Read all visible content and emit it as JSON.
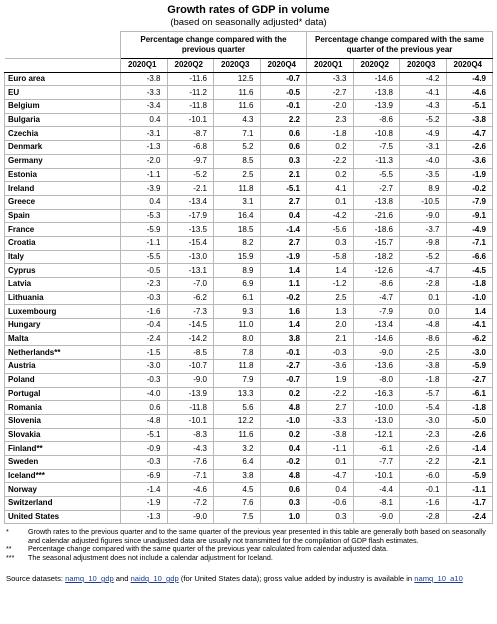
{
  "header": {
    "title": "Growth rates of GDP in volume",
    "subtitle": "(based on seasonally adjusted* data)"
  },
  "table": {
    "groups": [
      "Percentage change compared with the previous quarter",
      "Percentage change compared with the same quarter of the previous year"
    ],
    "quarters": [
      "2020Q1",
      "2020Q2",
      "2020Q3",
      "2020Q4"
    ],
    "rows": [
      [
        "Euro area",
        "-3.8",
        "-11.6",
        "12.5",
        "-0.7",
        "-3.3",
        "-14.6",
        "-4.2",
        "-4.9"
      ],
      [
        "EU",
        "-3.3",
        "-11.2",
        "11.6",
        "-0.5",
        "-2.7",
        "-13.8",
        "-4.1",
        "-4.6"
      ],
      [
        "Belgium",
        "-3.4",
        "-11.8",
        "11.6",
        "-0.1",
        "-2.0",
        "-13.9",
        "-4.3",
        "-5.1"
      ],
      [
        "Bulgaria",
        "0.4",
        "-10.1",
        "4.3",
        "2.2",
        "2.3",
        "-8.6",
        "-5.2",
        "-3.8"
      ],
      [
        "Czechia",
        "-3.1",
        "-8.7",
        "7.1",
        "0.6",
        "-1.8",
        "-10.8",
        "-4.9",
        "-4.7"
      ],
      [
        "Denmark",
        "-1.3",
        "-6.8",
        "5.2",
        "0.6",
        "0.2",
        "-7.5",
        "-3.1",
        "-2.6"
      ],
      [
        "Germany",
        "-2.0",
        "-9.7",
        "8.5",
        "0.3",
        "-2.2",
        "-11.3",
        "-4.0",
        "-3.6"
      ],
      [
        "Estonia",
        "-1.1",
        "-5.2",
        "2.5",
        "2.1",
        "0.2",
        "-5.5",
        "-3.5",
        "-1.9"
      ],
      [
        "Ireland",
        "-3.9",
        "-2.1",
        "11.8",
        "-5.1",
        "4.1",
        "-2.7",
        "8.9",
        "-0.2"
      ],
      [
        "Greece",
        "0.4",
        "-13.4",
        "3.1",
        "2.7",
        "0.1",
        "-13.8",
        "-10.5",
        "-7.9"
      ],
      [
        "Spain",
        "-5.3",
        "-17.9",
        "16.4",
        "0.4",
        "-4.2",
        "-21.6",
        "-9.0",
        "-9.1"
      ],
      [
        "France",
        "-5.9",
        "-13.5",
        "18.5",
        "-1.4",
        "-5.6",
        "-18.6",
        "-3.7",
        "-4.9"
      ],
      [
        "Croatia",
        "-1.1",
        "-15.4",
        "8.2",
        "2.7",
        "0.3",
        "-15.7",
        "-9.8",
        "-7.1"
      ],
      [
        "Italy",
        "-5.5",
        "-13.0",
        "15.9",
        "-1.9",
        "-5.8",
        "-18.2",
        "-5.2",
        "-6.6"
      ],
      [
        "Cyprus",
        "-0.5",
        "-13.1",
        "8.9",
        "1.4",
        "1.4",
        "-12.6",
        "-4.7",
        "-4.5"
      ],
      [
        "Latvia",
        "-2.3",
        "-7.0",
        "6.9",
        "1.1",
        "-1.2",
        "-8.6",
        "-2.8",
        "-1.8"
      ],
      [
        "Lithuania",
        "-0.3",
        "-6.2",
        "6.1",
        "-0.2",
        "2.5",
        "-4.7",
        "0.1",
        "-1.0"
      ],
      [
        "Luxembourg",
        "-1.6",
        "-7.3",
        "9.3",
        "1.6",
        "1.3",
        "-7.9",
        "0.0",
        "1.4"
      ],
      [
        "Hungary",
        "-0.4",
        "-14.5",
        "11.0",
        "1.4",
        "2.0",
        "-13.4",
        "-4.8",
        "-4.1"
      ],
      [
        "Malta",
        "-2.4",
        "-14.2",
        "8.0",
        "3.8",
        "2.1",
        "-14.6",
        "-8.6",
        "-6.2"
      ],
      [
        "Netherlands**",
        "-1.5",
        "-8.5",
        "7.8",
        "-0.1",
        "-0.3",
        "-9.0",
        "-2.5",
        "-3.0"
      ],
      [
        "Austria",
        "-3.0",
        "-10.7",
        "11.8",
        "-2.7",
        "-3.6",
        "-13.6",
        "-3.8",
        "-5.9"
      ],
      [
        "Poland",
        "-0.3",
        "-9.0",
        "7.9",
        "-0.7",
        "1.9",
        "-8.0",
        "-1.8",
        "-2.7"
      ],
      [
        "Portugal",
        "-4.0",
        "-13.9",
        "13.3",
        "0.2",
        "-2.2",
        "-16.3",
        "-5.7",
        "-6.1"
      ],
      [
        "Romania",
        "0.6",
        "-11.8",
        "5.6",
        "4.8",
        "2.7",
        "-10.0",
        "-5.4",
        "-1.8"
      ],
      [
        "Slovenia",
        "-4.8",
        "-10.1",
        "12.2",
        "-1.0",
        "-3.3",
        "-13.0",
        "-3.0",
        "-5.0"
      ],
      [
        "Slovakia",
        "-5.1",
        "-8.3",
        "11.6",
        "0.2",
        "-3.8",
        "-12.1",
        "-2.3",
        "-2.6"
      ],
      [
        "Finland**",
        "-0.9",
        "-4.3",
        "3.2",
        "0.4",
        "-1.1",
        "-6.1",
        "-2.6",
        "-1.4"
      ],
      [
        "Sweden",
        "-0.3",
        "-7.6",
        "6.4",
        "-0.2",
        "0.1",
        "-7.7",
        "-2.2",
        "-2.1"
      ],
      [
        "Iceland***",
        "-6.9",
        "-7.1",
        "3.8",
        "4.8",
        "-4.7",
        "-10.1",
        "-6.0",
        "-5.9"
      ],
      [
        "Norway",
        "-1.4",
        "-4.6",
        "4.5",
        "0.6",
        "0.4",
        "-4.4",
        "-0.1",
        "-1.1"
      ],
      [
        "Switzerland",
        "-1.9",
        "-7.2",
        "7.6",
        "0.3",
        "-0.6",
        "-8.1",
        "-1.6",
        "-1.7"
      ],
      [
        "United States",
        "-1.3",
        "-9.0",
        "7.5",
        "1.0",
        "0.3",
        "-9.0",
        "-2.8",
        "-2.4"
      ]
    ]
  },
  "notes": [
    {
      "mark": "*",
      "text": "Growth rates to the previous quarter and to the same quarter of the previous year presented in this table are generally both based on seasonally and calendar adjusted figures since unadjusted data are usually not transmitted for the compilation of GDP flash estimates."
    },
    {
      "mark": "**",
      "text": "Percentage change compared with the same quarter of the previous year calculated from calendar adjusted data."
    },
    {
      "mark": "***",
      "text": "The seasonal adjustment does not include a calendar adjustment for Iceland."
    }
  ],
  "source": [
    {
      "text": "Source datasets: ",
      "link": false
    },
    {
      "text": "namq_10_gdp",
      "link": true
    },
    {
      "text": " and ",
      "link": false
    },
    {
      "text": "naidq_10_gdp",
      "link": true
    },
    {
      "text": " (for United States data); gross value added by industry is available in ",
      "link": false
    },
    {
      "text": "namq_10_a10",
      "link": true
    }
  ]
}
